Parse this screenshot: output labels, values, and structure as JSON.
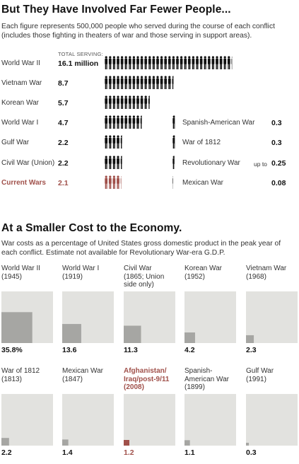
{
  "section1": {
    "title": "But They Have Involved Far Fewer People...",
    "subtitle": "Each figure represents 500,000 people who served during the course of each conflict (includes those fighting in theaters of war and those serving in support areas).",
    "total_header": "TOTAL SERVING:"
  },
  "section2": {
    "title": "At a Smaller Cost to the Economy.",
    "subtitle": "War costs as a percentage of United States gross domestic product in the peak year of each conflict. Estimate not available for Revolutionary War-era G.D.P."
  },
  "colors": {
    "figure": "#111111",
    "highlight": "#a0504a",
    "square_bg": "#e2e2df",
    "fill": "#a6a6a3"
  },
  "chart_data": [
    {
      "type": "bar",
      "title": "But They Have Involved Far Fewer People...",
      "unit_note": "Each figure represents 500,000 people",
      "rows_left": [
        {
          "war": "World War II",
          "value_label": "16.1 million",
          "value": 16.1,
          "highlight": false
        },
        {
          "war": "Vietnam War",
          "value_label": "8.7",
          "value": 8.7,
          "highlight": false
        },
        {
          "war": "Korean War",
          "value_label": "5.7",
          "value": 5.7,
          "highlight": false
        },
        {
          "war": "World War I",
          "value_label": "4.7",
          "value": 4.7,
          "highlight": false
        },
        {
          "war": "Gulf War",
          "value_label": "2.2",
          "value": 2.2,
          "highlight": false
        },
        {
          "war": "Civil War (Union)",
          "value_label": "2.2",
          "value": 2.2,
          "highlight": false
        },
        {
          "war": "Current Wars",
          "value_label": "2.1",
          "value": 2.1,
          "highlight": true
        }
      ],
      "rows_right": [
        {
          "war": "Spanish-American War",
          "prefix": "",
          "value_label": "0.3",
          "value": 0.3
        },
        {
          "war": "War of 1812",
          "prefix": "",
          "value_label": "0.3",
          "value": 0.3
        },
        {
          "war": "Revolutionary War",
          "prefix": "up to",
          "value_label": "0.25",
          "value": 0.25
        },
        {
          "war": "Mexican War",
          "prefix": "",
          "value_label": "0.08",
          "value": 0.08
        }
      ]
    },
    {
      "type": "bar",
      "title": "At a Smaller Cost to the Economy.",
      "unit": "% of G.D.P.",
      "cells": [
        {
          "name": "World War II",
          "detail": "(1945)",
          "value_label": "35.8%",
          "value": 35.8,
          "highlight": false
        },
        {
          "name": "World War I",
          "detail": "(1919)",
          "value_label": "13.6",
          "value": 13.6,
          "highlight": false
        },
        {
          "name": "Civil War",
          "detail": "(1865; Union side only)",
          "value_label": "11.3",
          "value": 11.3,
          "highlight": false
        },
        {
          "name": "Korean War",
          "detail": "(1952)",
          "value_label": "4.2",
          "value": 4.2,
          "highlight": false
        },
        {
          "name": "Vietnam War",
          "detail": "(1968)",
          "value_label": "2.3",
          "value": 2.3,
          "highlight": false
        },
        {
          "name": "War of 1812",
          "detail": "(1813)",
          "value_label": "2.2",
          "value": 2.2,
          "highlight": false
        },
        {
          "name": "Mexican War",
          "detail": "(1847)",
          "value_label": "1.4",
          "value": 1.4,
          "highlight": false
        },
        {
          "name": "Afghanistan/ Iraq/post-9/11",
          "detail": "(2008)",
          "value_label": "1.2",
          "value": 1.2,
          "highlight": true
        },
        {
          "name": "Spanish-American War",
          "detail": "(1899)",
          "value_label": "1.1",
          "value": 1.1,
          "highlight": false
        },
        {
          "name": "Gulf War",
          "detail": "(1991)",
          "value_label": "0.3",
          "value": 0.3,
          "highlight": false
        }
      ]
    }
  ]
}
